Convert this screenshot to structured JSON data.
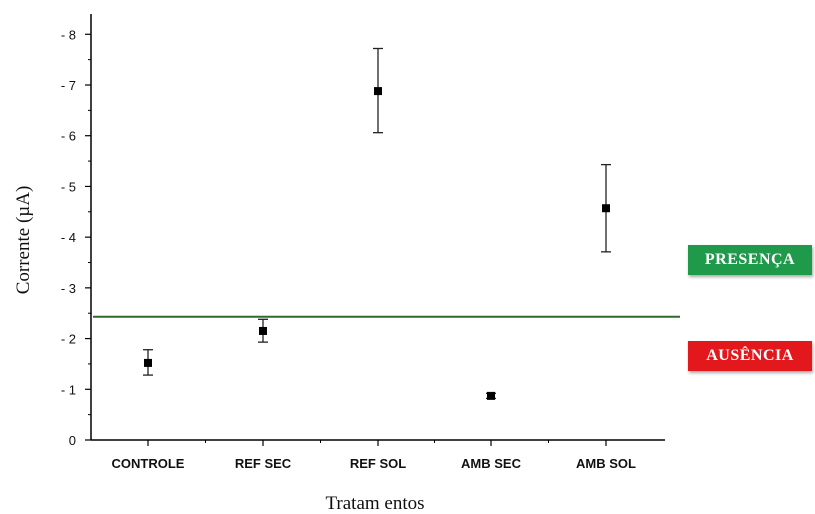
{
  "chart_data": {
    "type": "scatter",
    "xlabel": "Tratam entos",
    "ylabel": "Corrente (µA)",
    "categories": [
      "CONTROLE",
      "REF SEC",
      "REF SOL",
      "AMB SEC",
      "AMB SOL"
    ],
    "values": [
      1.52,
      2.15,
      6.88,
      0.87,
      4.57
    ],
    "error_low": [
      1.28,
      1.93,
      6.06,
      0.82,
      3.71
    ],
    "error_high": [
      1.78,
      2.38,
      7.72,
      0.92,
      5.43
    ],
    "ylim": [
      0,
      8.4
    ],
    "yticks": [
      0,
      1,
      2,
      3,
      4,
      5,
      6,
      7,
      8
    ],
    "ytick_labels": [
      "0",
      "- 1",
      "- 2",
      "- 3",
      "- 4",
      "- 5",
      "- 6",
      "- 7",
      "- 8"
    ],
    "threshold": 2.43,
    "threshold_color": "#2e6b2e",
    "grid": false
  },
  "labels": {
    "presence": "PRESENÇA",
    "absence": "AUSÊNCIA"
  },
  "colors": {
    "presence": "#1f9a4a",
    "absence": "#e3181d",
    "marker": "#000000"
  }
}
